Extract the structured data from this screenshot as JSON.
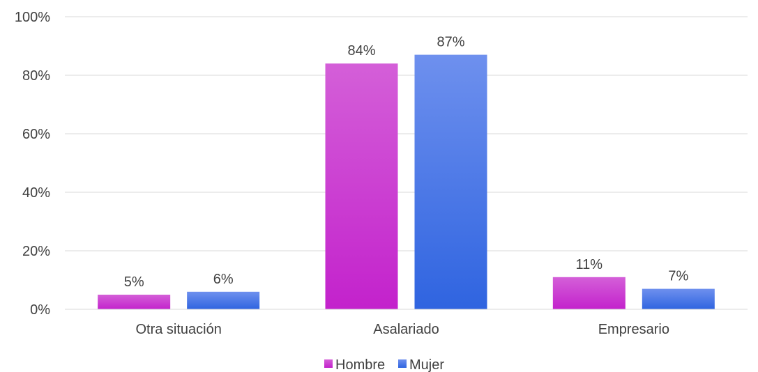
{
  "chart_data": {
    "type": "bar",
    "title": "",
    "xlabel": "",
    "ylabel": "",
    "categories": [
      "Otra situación",
      "Asalariado",
      "Empresario"
    ],
    "series": [
      {
        "name": "Hombre",
        "values": [
          5,
          84,
          11
        ],
        "labels": [
          "5%",
          "84%",
          "11%"
        ],
        "color": "#c322cc",
        "color_light": "#d45fd8"
      },
      {
        "name": "Mujer",
        "values": [
          6,
          87,
          7
        ],
        "labels": [
          "6%",
          "87%",
          "7%"
        ],
        "color": "#2f64e0",
        "color_light": "#6e90ee"
      }
    ],
    "ylim": [
      0,
      100
    ],
    "yticks": [
      0,
      20,
      40,
      60,
      80,
      100
    ],
    "ytick_labels": [
      "0%",
      "20%",
      "40%",
      "60%",
      "80%",
      "100%"
    ],
    "grid": true,
    "legend_position": "bottom-center",
    "gridline_color": "#d9d9d9",
    "text_color": "#404040"
  }
}
